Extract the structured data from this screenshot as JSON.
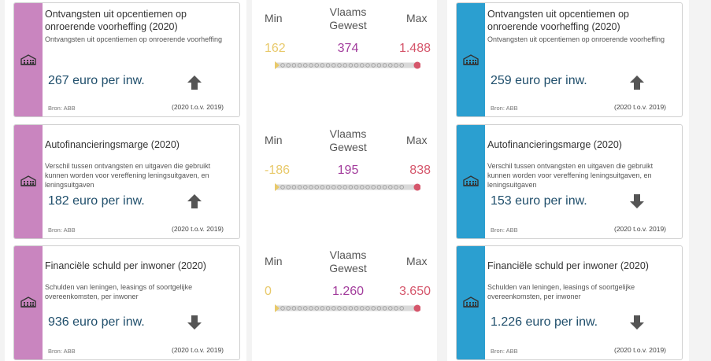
{
  "colors": {
    "left_accent": "#c985bf",
    "right_accent": "#2b9fd0",
    "min": "#e8c96a",
    "regional": "#a23c9c",
    "max": "#d5566b",
    "up_arrow": "#555555",
    "down_arrow": "#555555"
  },
  "rows": [
    {
      "left": {
        "title": "Ontvangsten uit opcentiemen op onroerende voorheffing (2020)",
        "description": "Ontvangsten uit opcentiemen op onroerende voorheffing",
        "value": "267 euro per inw.",
        "trend_icon": "arrow-up-icon",
        "source": "Bron: ABB",
        "period": "(2020 t.o.v. 2019)"
      },
      "middle": {
        "min_label": "Min",
        "region_label": "Vlaams Gewest",
        "max_label": "Max",
        "min_value": "162",
        "region_value": "374",
        "max_value": "1.488"
      },
      "right": {
        "title": "Ontvangsten uit opcentiemen op onroerende voorheffing (2020)",
        "description": "Ontvangsten uit opcentiemen op onroerende voorheffing",
        "value": "259 euro per inw.",
        "trend_icon": "arrow-up-icon",
        "source": "Bron: ABB",
        "period": "(2020 t.o.v. 2019)"
      }
    },
    {
      "left": {
        "title": "Autofinancieringsmarge (2020)",
        "description": "Verschil tussen ontvangsten en uitgaven die gebruikt kunnen worden voor vereffening leningsuitgaven, en leningsuitgaven",
        "value": "182 euro per inw.",
        "trend_icon": "arrow-up-icon",
        "source": "Bron: ABB",
        "period": "(2020 t.o.v. 2019)"
      },
      "middle": {
        "min_label": "Min",
        "region_label": "Vlaams Gewest",
        "max_label": "Max",
        "min_value": "-186",
        "region_value": "195",
        "max_value": "838"
      },
      "right": {
        "title": "Autofinancieringsmarge (2020)",
        "description": "Verschil tussen ontvangsten en uitgaven die gebruikt kunnen worden voor vereffening leningsuitgaven, en leningsuitgaven",
        "value": "153 euro per inw.",
        "trend_icon": "arrow-down-icon",
        "source": "Bron: ABB",
        "period": "(2020 t.o.v. 2019)"
      }
    },
    {
      "left": {
        "title": "Financiële schuld per inwoner (2020)",
        "description": "Schulden van leningen, leasings of soortgelijke overeenkomsten, per inwoner",
        "value": "936 euro per inw.",
        "trend_icon": "arrow-down-icon",
        "source": "Bron: ABB",
        "period": "(2020 t.o.v. 2019)"
      },
      "middle": {
        "min_label": "Min",
        "region_label": "Vlaams Gewest",
        "max_label": "Max",
        "min_value": "0",
        "region_value": "1.260",
        "max_value": "3.650"
      },
      "right": {
        "title": "Financiële schuld per inwoner (2020)",
        "description": "Schulden van leningen, leasings of soortgelijke overeenkomsten, per inwoner",
        "value": "1.226 euro per inw.",
        "trend_icon": "arrow-down-icon",
        "source": "Bron: ABB",
        "period": "(2020 t.o.v. 2019)"
      }
    }
  ]
}
